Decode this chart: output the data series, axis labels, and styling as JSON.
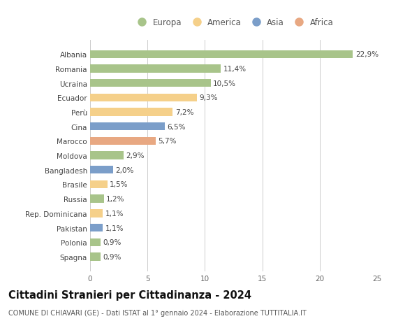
{
  "title": "Cittadini Stranieri per Cittadinanza - 2024",
  "subtitle": "COMUNE DI CHIAVARI (GE) - Dati ISTAT al 1° gennaio 2024 - Elaborazione TUTTITALIA.IT",
  "categories": [
    "Albania",
    "Romania",
    "Ucraina",
    "Ecuador",
    "Perù",
    "Cina",
    "Marocco",
    "Moldova",
    "Bangladesh",
    "Brasile",
    "Russia",
    "Rep. Dominicana",
    "Pakistan",
    "Polonia",
    "Spagna"
  ],
  "values": [
    22.9,
    11.4,
    10.5,
    9.3,
    7.2,
    6.5,
    5.7,
    2.9,
    2.0,
    1.5,
    1.2,
    1.1,
    1.1,
    0.9,
    0.9
  ],
  "labels": [
    "22,9%",
    "11,4%",
    "10,5%",
    "9,3%",
    "7,2%",
    "6,5%",
    "5,7%",
    "2,9%",
    "2,0%",
    "1,5%",
    "1,2%",
    "1,1%",
    "1,1%",
    "0,9%",
    "0,9%"
  ],
  "continents": [
    "Europa",
    "Europa",
    "Europa",
    "America",
    "America",
    "Asia",
    "Africa",
    "Europa",
    "Asia",
    "America",
    "Europa",
    "America",
    "Asia",
    "Europa",
    "Europa"
  ],
  "continent_colors": {
    "Europa": "#a8c48a",
    "America": "#f5d08a",
    "Asia": "#7b9ec9",
    "Africa": "#e8a882"
  },
  "legend_order": [
    "Europa",
    "America",
    "Asia",
    "Africa"
  ],
  "xlim": [
    0,
    25
  ],
  "xticks": [
    0,
    5,
    10,
    15,
    20,
    25
  ],
  "background_color": "#ffffff",
  "bar_height": 0.55,
  "grid_color": "#cccccc",
  "label_fontsize": 7.5,
  "tick_fontsize": 7.5,
  "title_fontsize": 10.5,
  "subtitle_fontsize": 7.0,
  "legend_fontsize": 8.5
}
